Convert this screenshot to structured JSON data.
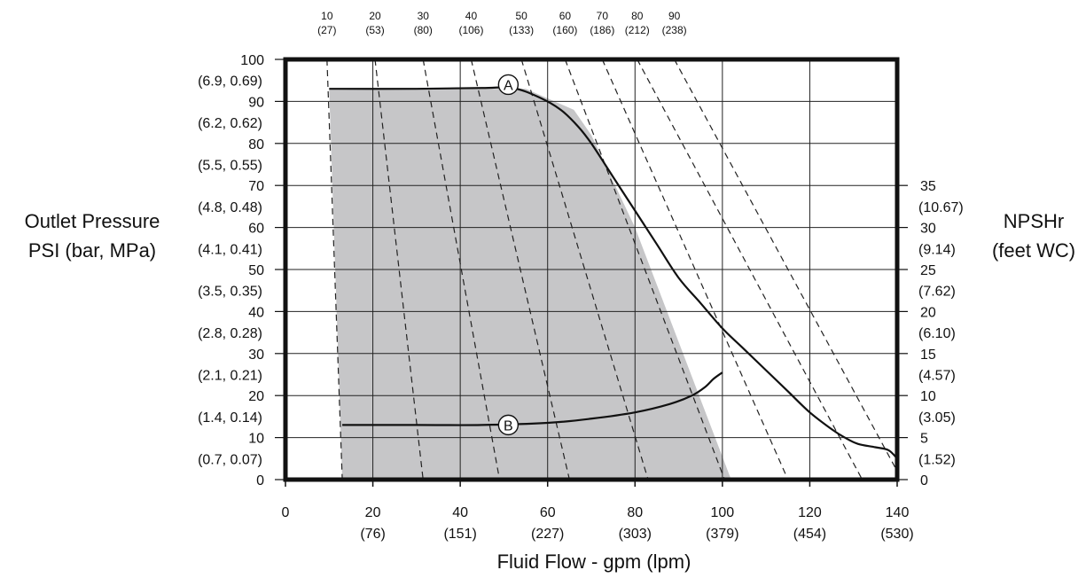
{
  "chart_data": {
    "type": "line",
    "xlabel": "Fluid Flow - gpm (lpm)",
    "ylabel_left": [
      "Outlet Pressure",
      "PSI (bar, MPa)"
    ],
    "ylabel_right": [
      "NPSHr",
      "(feet WC)"
    ],
    "xlim": [
      0,
      140
    ],
    "ylim": [
      0,
      100
    ],
    "grid": true,
    "x_ticks": [
      {
        "value": 0,
        "label": "0",
        "sub": ""
      },
      {
        "value": 20,
        "label": "20",
        "sub": "(76)"
      },
      {
        "value": 40,
        "label": "40",
        "sub": "(151)"
      },
      {
        "value": 60,
        "label": "60",
        "sub": "(227)"
      },
      {
        "value": 80,
        "label": "80",
        "sub": "(303)"
      },
      {
        "value": 100,
        "label": "100",
        "sub": "(379)"
      },
      {
        "value": 120,
        "label": "120",
        "sub": "(454)"
      },
      {
        "value": 140,
        "label": "140",
        "sub": "(530)"
      }
    ],
    "y_left_ticks": [
      {
        "value": 0,
        "label": "0",
        "sub": ""
      },
      {
        "value": 10,
        "label": "10",
        "sub": "(0.7, 0.07)"
      },
      {
        "value": 20,
        "label": "20",
        "sub": "(1.4, 0.14)"
      },
      {
        "value": 30,
        "label": "30",
        "sub": "(2.1, 0.21)"
      },
      {
        "value": 40,
        "label": "40",
        "sub": "(2.8, 0.28)"
      },
      {
        "value": 50,
        "label": "50",
        "sub": "(3.5, 0.35)"
      },
      {
        "value": 60,
        "label": "60",
        "sub": "(4.1, 0.41)"
      },
      {
        "value": 70,
        "label": "70",
        "sub": "(4.8, 0.48)"
      },
      {
        "value": 80,
        "label": "80",
        "sub": "(5.5, 0.55)"
      },
      {
        "value": 90,
        "label": "90",
        "sub": "(6.2, 0.62)"
      },
      {
        "value": 100,
        "label": "100",
        "sub": "(6.9, 0.69)"
      }
    ],
    "y_right_ticks": [
      {
        "value": 0,
        "label": "0",
        "sub": ""
      },
      {
        "value": 10,
        "label": "5",
        "sub": "(1.52)"
      },
      {
        "value": 20,
        "label": "10",
        "sub": "(3.05)"
      },
      {
        "value": 30,
        "label": "15",
        "sub": "(4.57)"
      },
      {
        "value": 40,
        "label": "20",
        "sub": "(6.10)"
      },
      {
        "value": 50,
        "label": "25",
        "sub": "(7.62)"
      },
      {
        "value": 60,
        "label": "30",
        "sub": "(9.14)"
      },
      {
        "value": 70,
        "label": "35",
        "sub": "(10.67)"
      }
    ],
    "top_labels": [
      {
        "label": "10",
        "sub": "(27)"
      },
      {
        "label": "20",
        "sub": "(53)"
      },
      {
        "label": "30",
        "sub": "(80)"
      },
      {
        "label": "40",
        "sub": "(106)"
      },
      {
        "label": "50",
        "sub": "(133)"
      },
      {
        "label": "60",
        "sub": "(160)"
      },
      {
        "label": "70",
        "sub": "(186)"
      },
      {
        "label": "80",
        "sub": "(212)"
      },
      {
        "label": "90",
        "sub": "(238)"
      }
    ],
    "dashed_lines": [
      [
        [
          9.5,
          100
        ],
        [
          13,
          0
        ]
      ],
      [
        [
          20.5,
          100
        ],
        [
          31.5,
          0
        ]
      ],
      [
        [
          31.5,
          100
        ],
        [
          49,
          0
        ]
      ],
      [
        [
          42.5,
          100
        ],
        [
          65,
          0
        ]
      ],
      [
        [
          54,
          100
        ],
        [
          83,
          0
        ]
      ],
      [
        [
          64,
          100
        ],
        [
          100.5,
          0
        ]
      ],
      [
        [
          72.5,
          100
        ],
        [
          115,
          0
        ]
      ],
      [
        [
          80.5,
          100
        ],
        [
          132,
          0
        ]
      ],
      [
        [
          89,
          100
        ],
        [
          140,
          2
        ]
      ]
    ],
    "shaded_region": [
      [
        10,
        93
      ],
      [
        55,
        93
      ],
      [
        66,
        88
      ],
      [
        70,
        82
      ],
      [
        80,
        60
      ],
      [
        102,
        0
      ],
      [
        13,
        0
      ]
    ],
    "series": [
      {
        "label": "A",
        "label_point": [
          51,
          94
        ],
        "points": [
          [
            10,
            93
          ],
          [
            30,
            93
          ],
          [
            45,
            93.2
          ],
          [
            52,
            93.2
          ],
          [
            58,
            91
          ],
          [
            63,
            88
          ],
          [
            67,
            84
          ],
          [
            70,
            80
          ],
          [
            75,
            72
          ],
          [
            80,
            64
          ],
          [
            85,
            56
          ],
          [
            90,
            48
          ],
          [
            95,
            42
          ],
          [
            100,
            36
          ],
          [
            105,
            31
          ],
          [
            110,
            26
          ],
          [
            115,
            21
          ],
          [
            120,
            16
          ],
          [
            125,
            12
          ],
          [
            128,
            10
          ],
          [
            131,
            8.5
          ],
          [
            135,
            7.7
          ],
          [
            138,
            7
          ],
          [
            140,
            5
          ]
        ]
      },
      {
        "label": "B",
        "label_point": [
          51,
          13
        ],
        "points": [
          [
            13,
            13
          ],
          [
            30,
            13
          ],
          [
            45,
            13
          ],
          [
            60,
            13.5
          ],
          [
            70,
            14.5
          ],
          [
            80,
            16
          ],
          [
            88,
            18
          ],
          [
            93,
            20
          ],
          [
            96,
            22
          ],
          [
            98,
            24
          ],
          [
            100,
            25.5
          ]
        ]
      }
    ]
  }
}
